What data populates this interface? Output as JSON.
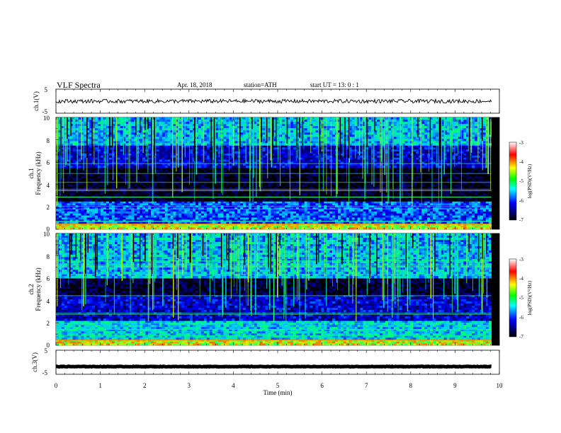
{
  "header": {
    "title": "VLF  Spectra",
    "date": "Apr. 18, 2018",
    "station": "station=ATH",
    "start_ut": "start  UT  =   13: 0   : 1"
  },
  "panels": {
    "ch1_waveform": {
      "ylabel": "ch.1(V)",
      "yticks": [
        "5",
        "-5"
      ]
    },
    "ch1_spectrogram": {
      "ylabel_line1": "ch.1",
      "ylabel_line2": "Frequency  (kHz)",
      "yticks": [
        "10",
        "8",
        "6",
        "4",
        "2",
        "0"
      ]
    },
    "ch2_spectrogram": {
      "ylabel_line1": "ch.2",
      "ylabel_line2": "Frequency  (kHz)",
      "yticks": [
        "10",
        "8",
        "6",
        "4",
        "2",
        "0"
      ]
    },
    "ch3_waveform": {
      "ylabel": "ch.3(V)",
      "yticks": [
        "5",
        "-5"
      ]
    }
  },
  "xaxis": {
    "label": "Time  (min)",
    "ticks": [
      "0",
      "1",
      "2",
      "3",
      "4",
      "5",
      "6",
      "7",
      "8",
      "9",
      "10"
    ]
  },
  "colorbar": {
    "label": "log(PSD)(V²/Hz)",
    "ticks": [
      "-3",
      "-4",
      "-5",
      "-6",
      "-7"
    ],
    "colors": [
      "#ffffff",
      "#ff0000",
      "#ffff00",
      "#00ff00",
      "#00ffff",
      "#0000ff",
      "#000000"
    ]
  },
  "chart_data": [
    {
      "type": "line",
      "name": "ch.1 waveform",
      "ylabel": "ch.1(V)",
      "xlabel": "Time  (min)",
      "xlim": [
        0,
        10
      ],
      "ylim": [
        -5,
        5
      ],
      "level_approx": 0,
      "data_extent_min": [
        0,
        9.82
      ]
    },
    {
      "type": "heatmap",
      "name": "ch.1 spectrogram",
      "ylabel": "Frequency  (kHz)",
      "xlim": [
        0,
        10
      ],
      "ylim": [
        0,
        10
      ],
      "color_scale": "log(PSD)(V²/Hz)",
      "clim": [
        -7,
        -3
      ],
      "bands_khz": [
        {
          "f_range": [
            0,
            0.5
          ],
          "level": -4.5
        },
        {
          "f_range": [
            0.5,
            2.5
          ],
          "level": -5.8
        },
        {
          "f_range": [
            2.5,
            5.5
          ],
          "level": -6.9
        },
        {
          "f_range": [
            5.5,
            7.5
          ],
          "level": -6.2
        },
        {
          "f_range": [
            7.5,
            10
          ],
          "level": -5.5
        }
      ]
    },
    {
      "type": "heatmap",
      "name": "ch.2 spectrogram",
      "ylabel": "Frequency  (kHz)",
      "xlim": [
        0,
        10
      ],
      "ylim": [
        0,
        10
      ],
      "color_scale": "log(PSD)(V²/Hz)",
      "clim": [
        -7,
        -3
      ],
      "bands_khz": [
        {
          "f_range": [
            0,
            0.5
          ],
          "level": -4.5
        },
        {
          "f_range": [
            0.5,
            2.2
          ],
          "level": -5.4
        },
        {
          "f_range": [
            2.2,
            4.5
          ],
          "level": -6.2
        },
        {
          "f_range": [
            4.5,
            6
          ],
          "level": -6.8
        },
        {
          "f_range": [
            6,
            10
          ],
          "level": -5.5
        }
      ]
    },
    {
      "type": "line",
      "name": "ch.3 waveform",
      "ylabel": "ch.3(V)",
      "xlabel": "Time  (min)",
      "xlim": [
        0,
        10
      ],
      "ylim": [
        -5,
        5
      ],
      "level_approx": -1.8,
      "data_extent_min": [
        0,
        9.82
      ]
    }
  ]
}
